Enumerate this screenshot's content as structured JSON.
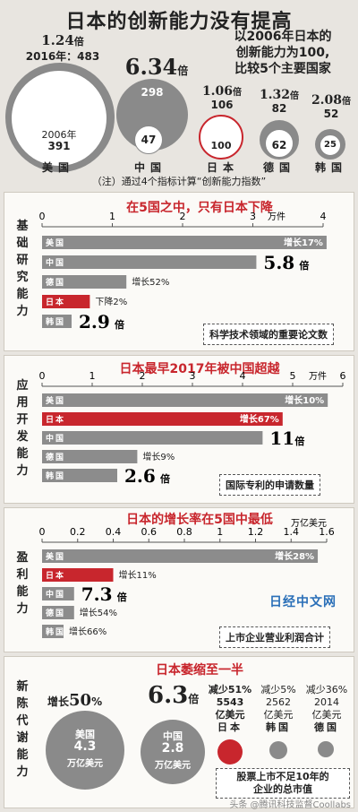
{
  "header": {
    "title": "日本的创新能力没有提高",
    "intro_lines": [
      "以2006年日本的",
      "创新能力为100,",
      "比较5个主要国家"
    ],
    "note": "（注）通过4个指标计算“创新能力指数”"
  },
  "overview": {
    "countries": [
      {
        "name": "美国",
        "ratio": "1.24",
        "unit": "倍",
        "year_2016_label": "2016年：483",
        "value_2016": "483",
        "year_2006_label": "2006年",
        "value_2006": "391"
      },
      {
        "name": "中国",
        "ratio": "6.34",
        "unit": "倍",
        "value_2016": "298",
        "value_2006": "47"
      },
      {
        "name": "日本",
        "ratio": "1.06",
        "unit": "倍",
        "value_2016": "106",
        "value_2006": "100"
      },
      {
        "name": "德国",
        "ratio": "1.32",
        "unit": "倍",
        "value_2016": "82",
        "value_2006": "62"
      },
      {
        "name": "韩国",
        "ratio": "2.08",
        "unit": "倍",
        "value_2016": "52",
        "value_2006": "25"
      }
    ]
  },
  "panels": [
    {
      "label": "基础研究能力",
      "title": "在5国之中，只有日本下降",
      "unit": "万件",
      "ticks": [
        "0",
        "1",
        "2",
        "3",
        "4"
      ],
      "metric": "科学技术领域的重要论文数",
      "bars": [
        {
          "name": "美国",
          "note": "增长17%"
        },
        {
          "name": "中国",
          "mult": "5.8",
          "mult_unit": "倍"
        },
        {
          "name": "德国",
          "note": "增长52%"
        },
        {
          "name": "日本",
          "note": "下降2%"
        },
        {
          "name": "韩国",
          "mult": "2.9",
          "mult_unit": "倍"
        }
      ]
    },
    {
      "label": "应用开发能力",
      "title": "日本最早2017年被中国超越",
      "unit": "万件",
      "ticks": [
        "0",
        "1",
        "2",
        "3",
        "4",
        "5",
        "6"
      ],
      "metric": "国际专利的申请数量",
      "bars": [
        {
          "name": "美国",
          "note": "增长10%"
        },
        {
          "name": "日本",
          "note": "增长67%"
        },
        {
          "name": "中国",
          "mult": "11",
          "mult_unit": "倍"
        },
        {
          "name": "德国",
          "note": "增长9%"
        },
        {
          "name": "韩国",
          "mult": "2.6",
          "mult_unit": "倍"
        }
      ]
    },
    {
      "label": "盈利能力",
      "title": "日本的增长率在5国中最低",
      "unit": "万亿美元",
      "ticks": [
        "0",
        "0.2",
        "0.4",
        "0.6",
        "0.8",
        "1",
        "1.2",
        "1.4",
        "1.6"
      ],
      "metric": "上市企业营业利润合计",
      "bars": [
        {
          "name": "美国",
          "note": "增长28%"
        },
        {
          "name": "日本",
          "note": "增长11%"
        },
        {
          "name": "中国",
          "mult": "7.3",
          "mult_unit": "倍"
        },
        {
          "name": "德国",
          "note": "增长54%"
        },
        {
          "name": "韩国",
          "note": "增长66%"
        }
      ]
    },
    {
      "label": "新陈代谢能力",
      "title": "日本萎缩至一半",
      "metric_lines": [
        "股票上市不足10年的",
        "企业的总市值"
      ],
      "us": {
        "growth_label": "增长",
        "growth": "50",
        "growth_unit": "%",
        "name": "美国",
        "value": "4.3",
        "unit": "万亿美元"
      },
      "cn": {
        "mult": "6.3",
        "mult_unit": "倍",
        "name": "中国",
        "value": "2.8",
        "unit": "万亿美元"
      },
      "small": [
        {
          "change": "减少51%",
          "value": "5543",
          "unit": "亿美元",
          "name": "日本"
        },
        {
          "change": "减少5%",
          "value": "2562",
          "unit": "亿美元",
          "name": "韩国"
        },
        {
          "change": "减少36%",
          "value": "2014",
          "unit": "亿美元",
          "name": "德国"
        }
      ]
    }
  ],
  "watermark": "日经中文网",
  "footer": "头条 @腾讯科技监督Coollabs",
  "colors": {
    "red": "#c8262d",
    "gray": "#8c8c8c",
    "panel": "#fbfaf7"
  },
  "chart_data": [
    {
      "type": "bar",
      "title": "在5国之中，只有日本下降",
      "ylabel": "万件",
      "ylim": [
        0,
        4
      ],
      "categories": [
        "美国",
        "中国",
        "德国",
        "日本",
        "韩国"
      ],
      "values": [
        4.05,
        3.05,
        1.2,
        0.68,
        0.42
      ]
    },
    {
      "type": "bar",
      "title": "日本最早2017年被中国超越",
      "ylabel": "万件",
      "ylim": [
        0,
        6
      ],
      "categories": [
        "美国",
        "日本",
        "中国",
        "德国",
        "韩国"
      ],
      "values": [
        5.7,
        4.8,
        4.4,
        1.9,
        1.5
      ]
    },
    {
      "type": "bar",
      "title": "日本的增长率在5国中最低",
      "ylabel": "万亿美元",
      "ylim": [
        0,
        1.6
      ],
      "categories": [
        "美国",
        "日本",
        "中国",
        "德国",
        "韩国"
      ],
      "values": [
        1.55,
        0.4,
        0.18,
        0.18,
        0.1
      ]
    }
  ]
}
